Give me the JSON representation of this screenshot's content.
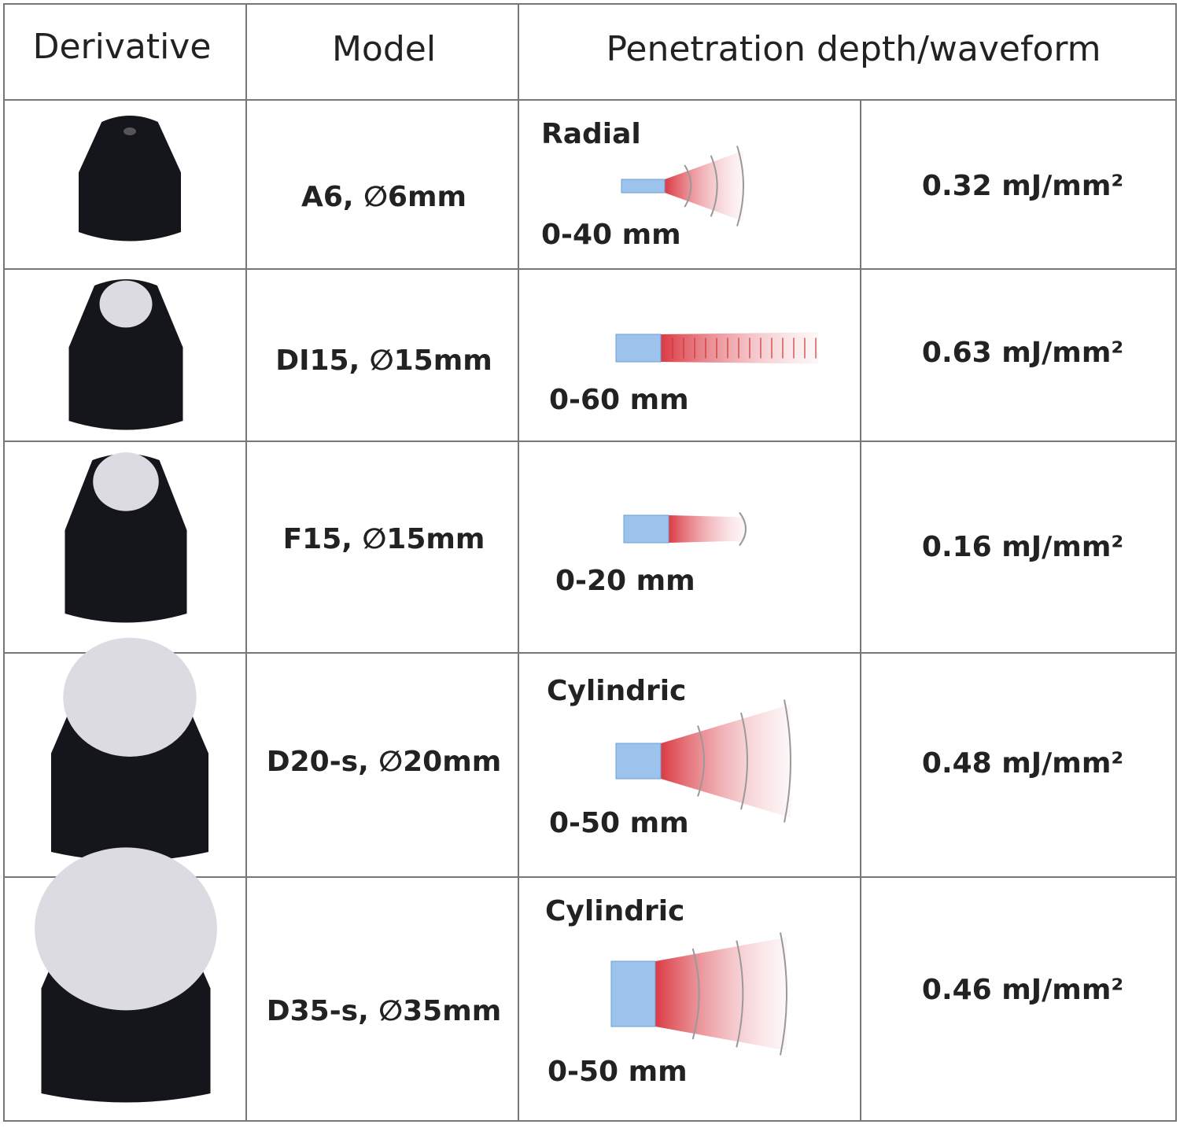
{
  "table": {
    "header": [
      "Derivative",
      "Model",
      "Penetration depth/waveform"
    ],
    "rows": [
      {
        "model": "A6, ∅6mm",
        "waveform": "Radial",
        "depth": "0-40 mm",
        "energy": "0.32 mJ/mm²"
      },
      {
        "model": "DI15, ∅15mm",
        "depth": "0-60 mm",
        "energy": "0.63 mJ/mm²"
      },
      {
        "model": "F15, ∅15mm",
        "depth": "0-20 mm",
        "energy": "0.16 mJ/mm²"
      },
      {
        "model": "D20-s, ∅20mm",
        "waveform": "Cylindric",
        "depth": "0-50 mm",
        "energy": "0.48 mJ/mm²"
      },
      {
        "model": "D35-s, ∅35mm",
        "waveform": "Cylindric",
        "depth": "0-50 mm",
        "energy": "0.46 mJ/mm²"
      }
    ]
  }
}
